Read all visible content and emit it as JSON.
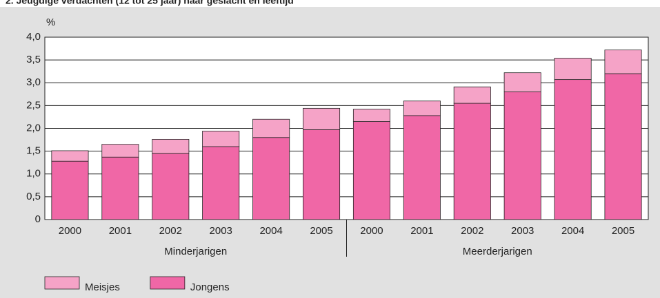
{
  "chart_data": {
    "type": "stacked-bar",
    "title": "2. Jeugdige verdachten (12 tot 25 jaar) naar geslacht en leeftijd",
    "ylabel": "%",
    "groups": [
      {
        "name": "Minderjarigen",
        "categories": [
          "2000",
          "2001",
          "2002",
          "2003",
          "2004",
          "2005"
        ]
      },
      {
        "name": "Meerderjarigen",
        "categories": [
          "2000",
          "2001",
          "2002",
          "2003",
          "2004",
          "2005"
        ]
      }
    ],
    "series": [
      {
        "name": "Jongens",
        "color": "#f067a6",
        "values": [
          1.28,
          1.37,
          1.45,
          1.6,
          1.8,
          1.97,
          2.15,
          2.28,
          2.55,
          2.8,
          3.07,
          3.2
        ]
      },
      {
        "name": "Meisjes",
        "color": "#f5a3c7",
        "values": [
          0.23,
          0.28,
          0.31,
          0.34,
          0.4,
          0.47,
          0.27,
          0.32,
          0.36,
          0.42,
          0.47,
          0.52
        ]
      }
    ],
    "ylim": [
      0,
      4
    ],
    "yticks": [
      0,
      {
        "value": 0.5,
        "label": "0,5"
      },
      {
        "value": 1,
        "label": "1,0"
      },
      {
        "value": 1.5,
        "label": "1,5"
      },
      {
        "value": 2,
        "label": "2,0"
      },
      {
        "value": 2.5,
        "label": "2,5"
      },
      {
        "value": 3,
        "label": "3,0"
      },
      {
        "value": 3.5,
        "label": "3,5"
      },
      {
        "value": 4,
        "label": "4,0"
      }
    ],
    "grid": true,
    "legend": "bottom-left"
  }
}
